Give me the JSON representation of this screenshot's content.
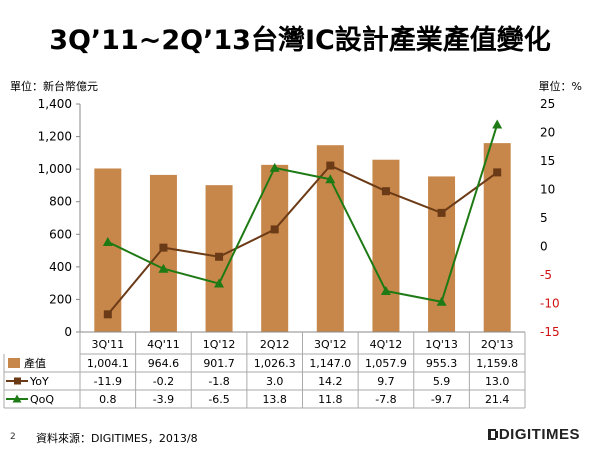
{
  "title": "3Q’11~2Q’13台灣IC設計產業產值變化",
  "unit_left": "單位：新台幣億元",
  "unit_right": "單位：%",
  "source": "資料來源：DIGITIMES，2013/8",
  "page_number": "2",
  "logo_text": "DIGITIMES",
  "chart_data": {
    "type": "bar",
    "categories": [
      "3Q'11",
      "4Q'11",
      "1Q'12",
      "2Q12",
      "3Q'12",
      "4Q'12",
      "1Q'13",
      "2Q'13"
    ],
    "series": [
      {
        "name": "產值",
        "type": "bar",
        "axis": "left",
        "color": "#c8874a",
        "marker": "square",
        "values": [
          1004.1,
          964.6,
          901.7,
          1026.3,
          1147.0,
          1057.9,
          955.3,
          1159.8
        ],
        "labels": [
          "1,004.1",
          "964.6",
          "901.7",
          "1,026.3",
          "1,147.0",
          "1,057.9",
          "955.3",
          "1,159.8"
        ]
      },
      {
        "name": "YoY",
        "type": "line",
        "axis": "right",
        "color": "#6b3a16",
        "marker": "square",
        "values": [
          -11.9,
          -0.2,
          -1.8,
          3.0,
          14.2,
          9.7,
          5.9,
          13.0
        ],
        "labels": [
          "-11.9",
          "-0.2",
          "-1.8",
          "3.0",
          "14.2",
          "9.7",
          "5.9",
          "13.0"
        ]
      },
      {
        "name": "QoQ",
        "type": "line",
        "axis": "right",
        "color": "#1e7a14",
        "marker": "triangle",
        "values": [
          0.8,
          -3.9,
          -6.5,
          13.8,
          11.8,
          -7.8,
          -9.7,
          21.4
        ],
        "labels": [
          "0.8",
          "-3.9",
          "-6.5",
          "13.8",
          "11.8",
          "-7.8",
          "-9.7",
          "21.4"
        ]
      }
    ],
    "y_left": {
      "ylim": [
        0,
        1400
      ],
      "ticks": [
        "0",
        "200",
        "400",
        "600",
        "800",
        "1,000",
        "1,200",
        "1,400"
      ],
      "tick_values": [
        0,
        200,
        400,
        600,
        800,
        1000,
        1200,
        1400
      ]
    },
    "y_right": {
      "ylim": [
        -15,
        25
      ],
      "ticks": [
        "-15",
        "-10",
        "-5",
        "0",
        "5",
        "10",
        "15",
        "20",
        "25"
      ],
      "tick_values": [
        -15,
        -10,
        -5,
        0,
        5,
        10,
        15,
        20,
        25
      ],
      "negative_color": "#d01010"
    },
    "grid": false,
    "legend": "data-table-below"
  }
}
